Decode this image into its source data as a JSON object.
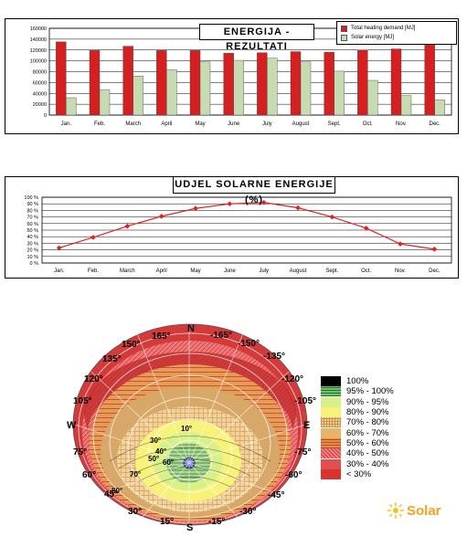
{
  "chart_data": [
    {
      "type": "bar",
      "title": "ENERGIJA -REZULTATI",
      "categories": [
        "Jan.",
        "Feb.",
        "March",
        "April",
        "May",
        "June",
        "July",
        "August",
        "Sept.",
        "Oct.",
        "Nov.",
        "Dec."
      ],
      "series": [
        {
          "name": "Total heating demand [MJ]",
          "color": "#d42020",
          "values": [
            135000,
            119000,
            127000,
            119000,
            119000,
            114000,
            115000,
            117000,
            116000,
            120000,
            122000,
            135000
          ]
        },
        {
          "name": "Solar energy [MJ]",
          "color": "#c6dbb1",
          "values": [
            32000,
            47000,
            72000,
            84000,
            98000,
            101000,
            105000,
            98000,
            81000,
            64000,
            36000,
            28000
          ]
        }
      ],
      "yticks": [
        "0",
        "20000",
        "40000",
        "60000",
        "80000",
        "100000",
        "120000",
        "140000",
        "160000"
      ],
      "ylim": [
        0,
        160000
      ],
      "legend_position": "top-right",
      "grid": true
    },
    {
      "type": "line",
      "title": "UDJEL SOLARNE ENERGIJE (%)",
      "categories": [
        "Jan.",
        "Feb.",
        "March",
        "April",
        "May",
        "June",
        "July",
        "August",
        "Sept.",
        "Oct.",
        "Nov.",
        "Dec."
      ],
      "series": [
        {
          "color": "#e32020",
          "values": [
            23,
            39,
            56,
            71,
            83,
            90,
            92,
            84,
            70,
            53,
            29,
            21
          ]
        }
      ],
      "yticks": [
        "0 %",
        "10 %",
        "20 %",
        "30 %",
        "40 %",
        "50 %",
        "60 %",
        "70 %",
        "80 %",
        "90 %",
        "100 %"
      ],
      "ylim": [
        0,
        100
      ],
      "grid": true
    }
  ],
  "sunpath": {
    "compass": {
      "north": "N",
      "south": "S",
      "east": "E",
      "west": "W"
    },
    "angle_labels": [
      "165°",
      "150°",
      "135°",
      "120°",
      "105°",
      "75°",
      "60°",
      "45°",
      "30°",
      "15°",
      "-165°",
      "-150°",
      "-135°",
      "-120°",
      "-105°",
      "-75°",
      "-60°",
      "-45°",
      "-30°",
      "-15°"
    ],
    "altitude_labels": [
      "10°",
      "30°",
      "40°",
      "50°",
      "60°",
      "70°",
      "80°"
    ],
    "legend": [
      {
        "label": "100%",
        "color": "#000000"
      },
      {
        "label": "95% - 100%",
        "color": "#6cc56c"
      },
      {
        "label": "90% - 95%",
        "color": "#d8f08a"
      },
      {
        "label": "80% - 90%",
        "color": "#f7f27a"
      },
      {
        "label": "70% - 80%",
        "color": "#f3d28a"
      },
      {
        "label": "60% - 70%",
        "color": "#e8b466"
      },
      {
        "label": "50% - 60%",
        "color": "#e68a4a"
      },
      {
        "label": "40% - 50%",
        "color": "#f08080"
      },
      {
        "label": "30% - 40%",
        "color": "#e05050"
      },
      {
        "label": "< 30%",
        "color": "#d93030"
      }
    ]
  },
  "brand": {
    "name": "Solar"
  }
}
